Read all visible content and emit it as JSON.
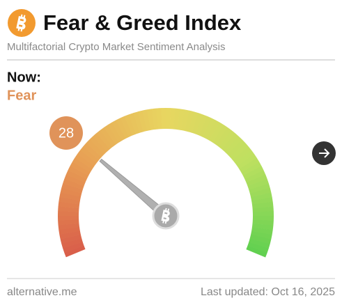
{
  "header": {
    "title": "Fear & Greed Index",
    "subtitle": "Multifactorial Crypto Market Sentiment Analysis"
  },
  "now": {
    "label": "Now:",
    "classification": "Fear"
  },
  "gauge": {
    "value": 28,
    "range": [
      0,
      100
    ]
  },
  "footer": {
    "source": "alternative.me",
    "updated": "Last updated: Oct 16, 2025"
  }
}
